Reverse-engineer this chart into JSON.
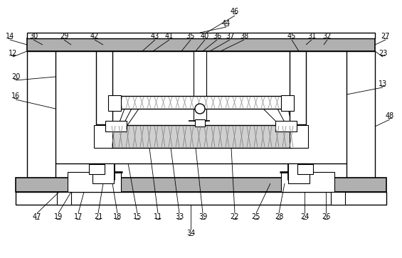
{
  "bg_color": "#ffffff",
  "lc": "#000000",
  "fig_width": 5.65,
  "fig_height": 3.63,
  "dpi": 100
}
